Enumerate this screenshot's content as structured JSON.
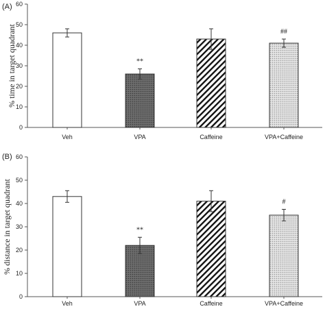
{
  "chart_data": [
    {
      "type": "bar",
      "panel_label": "(A)",
      "categories": [
        "Veh",
        "VPA",
        "Caffeine",
        "VPA+Caffeine"
      ],
      "values": [
        46,
        26,
        43,
        41
      ],
      "errors": [
        2,
        2.5,
        5,
        2
      ],
      "annotations": [
        "",
        "**",
        "",
        "##"
      ],
      "ylabel": "% time  in target quadrant",
      "ylim": [
        0,
        60
      ],
      "yticks": [
        "0",
        "10",
        "20",
        "30",
        "40",
        "50",
        "60"
      ],
      "grid": false,
      "bar_styles": [
        "white",
        "gray-dots",
        "diagonal-hatch",
        "light-dots"
      ]
    },
    {
      "type": "bar",
      "panel_label": "(B)",
      "categories": [
        "Veh",
        "VPA",
        "Caffeine",
        "VPA+Caffeine"
      ],
      "values": [
        43,
        22,
        41,
        35
      ],
      "errors": [
        2.5,
        3.5,
        4.5,
        2.5
      ],
      "annotations": [
        "",
        "**",
        "",
        "#"
      ],
      "ylabel": "% distance  in target quadrant",
      "ylim": [
        0,
        60
      ],
      "yticks": [
        "0",
        "10",
        "20",
        "30",
        "40",
        "50",
        "60"
      ],
      "grid": false,
      "bar_styles": [
        "white",
        "gray-dots",
        "diagonal-hatch",
        "light-dots"
      ]
    }
  ]
}
